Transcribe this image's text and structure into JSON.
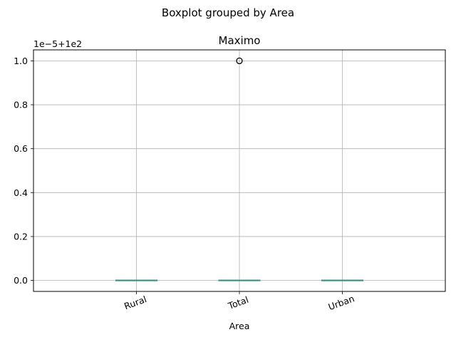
{
  "suptitle": "Boxplot grouped by Area",
  "offset_label": "1e−5+1e2",
  "chart_data": {
    "type": "boxplot",
    "title": "Maximo",
    "xlabel": "Area",
    "ylabel": "",
    "categories": [
      "Rural",
      "Total",
      "Urban"
    ],
    "y_ticks": [
      0.0,
      0.2,
      0.4,
      0.6,
      0.8,
      1.0
    ],
    "y_tick_labels": [
      "0.0",
      "0.2",
      "0.4",
      "0.6",
      "0.8",
      "1.0"
    ],
    "ylim": [
      -0.05,
      1.05
    ],
    "y_offset_note": "values shown as (y × 1e-5) + 100",
    "boxes": [
      {
        "category": "Rural",
        "min": 0.0,
        "q1": 0.0,
        "median": 0.0,
        "q3": 0.0,
        "max": 0.0,
        "outliers": []
      },
      {
        "category": "Total",
        "min": 0.0,
        "q1": 0.0,
        "median": 0.0,
        "q3": 0.0,
        "max": 0.0,
        "outliers": [
          1.0
        ]
      },
      {
        "category": "Urban",
        "min": 0.0,
        "q1": 0.0,
        "median": 0.0,
        "q3": 0.0,
        "max": 0.0,
        "outliers": []
      }
    ],
    "grid": true,
    "colors": {
      "box": "#1f77b4",
      "median": "#2ca02c",
      "grid": "#b0b0b0",
      "outlier_edge": "#000000"
    }
  }
}
